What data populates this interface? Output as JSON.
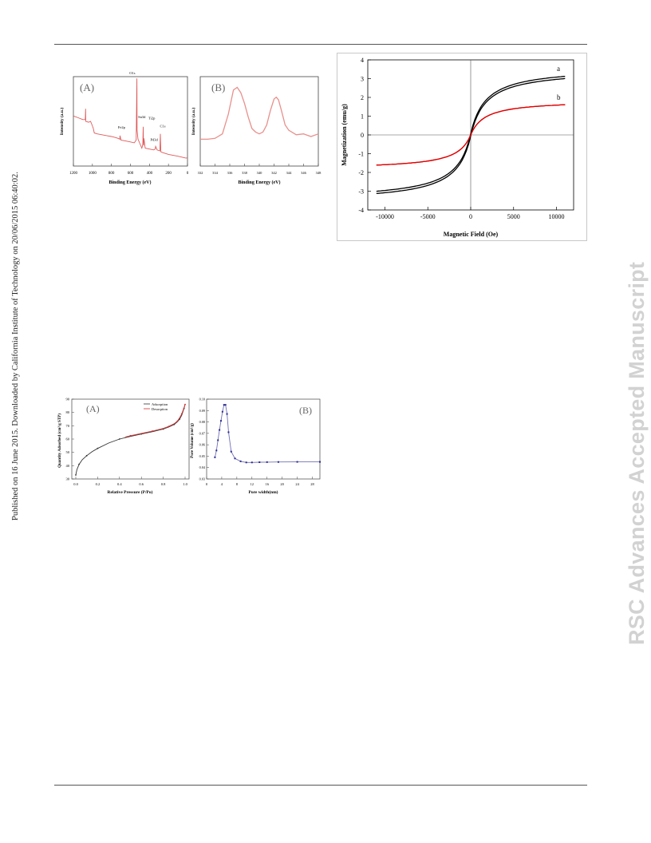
{
  "page": {
    "side_note": "Published on 16 June 2015. Downloaded by California Institute of Technology on 20/06/2015 06:40:02.",
    "watermark": "RSC Advances Accepted Manuscript"
  },
  "chart_data": [
    {
      "panel": "(A)",
      "type": "line",
      "xlabel": "Binding Energy (eV)",
      "ylabel": "Intensity (a.u.)",
      "xlim": [
        1200,
        0
      ],
      "xticks": [
        "1200",
        "1000",
        "800",
        "600",
        "400",
        "200",
        "0"
      ],
      "color": "#e05a5a",
      "series": [
        {
          "x": [
            1200,
            1150,
            1100,
            1075,
            1072,
            1070,
            1040,
            1020,
            1000,
            990,
            980,
            950,
            900,
            850,
            800,
            760,
            730,
            712,
            710,
            700,
            650,
            600,
            560,
            540,
            532,
            530,
            520,
            500,
            480,
            470,
            466,
            462,
            458,
            445,
            400,
            355,
            340,
            335,
            320,
            290,
            285,
            280,
            260,
            200,
            150,
            100,
            60,
            20,
            0
          ],
          "y": [
            0.56,
            0.54,
            0.52,
            0.52,
            0.64,
            0.5,
            0.49,
            0.5,
            0.45,
            0.42,
            0.37,
            0.36,
            0.35,
            0.34,
            0.33,
            0.32,
            0.31,
            0.3,
            0.34,
            0.29,
            0.28,
            0.27,
            0.26,
            0.29,
            0.98,
            0.4,
            0.3,
            0.25,
            0.2,
            0.24,
            0.44,
            0.23,
            0.31,
            0.2,
            0.19,
            0.18,
            0.19,
            0.22,
            0.18,
            0.17,
            0.36,
            0.16,
            0.15,
            0.13,
            0.12,
            0.11,
            0.1,
            0.09,
            0.09
          ]
        }
      ],
      "annotations": [
        "O1s",
        "Sn3d",
        "Fe2p",
        "Ti2p",
        "Pd3d",
        "C1s"
      ]
    },
    {
      "panel": "(B)",
      "type": "line",
      "xlabel": "Binding Energy (eV)",
      "ylabel": "Intensity (a.u.)",
      "xlim": [
        332,
        348
      ],
      "xticks": [
        "332",
        "334",
        "336",
        "338",
        "340",
        "342",
        "344",
        "346",
        "348"
      ],
      "color": "#e8908c",
      "series": [
        {
          "x": [
            332,
            333,
            334,
            335,
            335.8,
            336.5,
            337,
            337.5,
            338,
            338.5,
            339,
            339.5,
            340,
            340.5,
            341,
            341.5,
            342,
            342.3,
            342.6,
            343,
            343.5,
            344,
            345,
            346,
            347,
            348
          ],
          "y": [
            0.3,
            0.3,
            0.31,
            0.36,
            0.58,
            0.85,
            0.88,
            0.82,
            0.7,
            0.55,
            0.42,
            0.38,
            0.36,
            0.38,
            0.46,
            0.62,
            0.75,
            0.77,
            0.74,
            0.62,
            0.46,
            0.4,
            0.35,
            0.36,
            0.33,
            0.36
          ]
        }
      ]
    },
    {
      "type": "line",
      "xlabel": "Magnetic Field (Oe)",
      "ylabel": "Magnetization (emu/g)",
      "xlim": [
        -12000,
        12000
      ],
      "ylim": [
        -4,
        4
      ],
      "xticks": [
        "-10000",
        "-5000",
        "0",
        "5000",
        "10000"
      ],
      "yticks": [
        "-4",
        "-3",
        "-2",
        "-1",
        "0",
        "1",
        "2",
        "3",
        "4"
      ],
      "series": [
        {
          "name": "a",
          "color": "#000000",
          "hs": 3.55,
          "ho": 1750,
          "x": [
            -11000,
            11000
          ],
          "y": [
            -3.2,
            3.2
          ]
        },
        {
          "name": "b",
          "color": "#e00000",
          "hs": 1.85,
          "ho": 1650,
          "x": [
            -11000,
            11000
          ],
          "y": [
            -1.65,
            1.65
          ]
        }
      ]
    },
    {
      "panel": "(A)",
      "type": "line",
      "xlabel": "Relative Pressure (P/Po)",
      "ylabel": "Quantity Adsorbed (cm³/g STP)",
      "xlim": [
        0,
        1.0
      ],
      "ylim": [
        30,
        90
      ],
      "xticks": [
        "0.0",
        "0.2",
        "0.4",
        "0.6",
        "0.8",
        "1.0"
      ],
      "yticks": [
        "30",
        "40",
        "50",
        "60",
        "70",
        "80",
        "90"
      ],
      "legend": [
        "Adsorption",
        "Desorption"
      ],
      "series": [
        {
          "name": "Adsorption",
          "color": "#333333",
          "x": [
            0.0,
            0.01,
            0.03,
            0.06,
            0.1,
            0.15,
            0.2,
            0.3,
            0.4,
            0.5,
            0.6,
            0.7,
            0.8,
            0.85,
            0.9,
            0.93,
            0.95,
            0.97,
            0.99,
            1.0
          ],
          "y": [
            33,
            37,
            41,
            44.5,
            47.5,
            50.5,
            53,
            57,
            60,
            62,
            63.8,
            65.5,
            67.5,
            69,
            71,
            73,
            75,
            78,
            83,
            86
          ]
        },
        {
          "name": "Desorption",
          "color": "#d43030",
          "x": [
            1.0,
            0.99,
            0.97,
            0.95,
            0.93,
            0.9,
            0.85,
            0.8,
            0.7,
            0.6,
            0.5,
            0.45
          ],
          "y": [
            86,
            83.5,
            79,
            76,
            73.5,
            71.5,
            69.5,
            68,
            66,
            64.2,
            62.5,
            61.5
          ]
        }
      ]
    },
    {
      "panel": "(B)",
      "type": "line",
      "xlabel": "Pore width(nm)",
      "ylabel": "Pore Volume (cm³/g)",
      "xlim": [
        0,
        30
      ],
      "ylim": [
        0.03,
        0.1
      ],
      "xticks": [
        "0",
        "4",
        "8",
        "12",
        "16",
        "20",
        "24",
        "28"
      ],
      "yticks": [
        "0.03",
        "0.04",
        "0.05",
        "0.06",
        "0.07",
        "0.08",
        "0.09",
        "0.10"
      ],
      "series": [
        {
          "color": "#7070b8",
          "x": [
            2.2,
            2.6,
            3.0,
            3.4,
            3.8,
            4.2,
            4.6,
            5.0,
            5.4,
            5.8,
            6.5,
            7.5,
            9,
            10.5,
            12,
            14,
            16,
            19,
            24,
            30
          ],
          "y": [
            0.049,
            0.055,
            0.064,
            0.073,
            0.081,
            0.089,
            0.095,
            0.095,
            0.087,
            0.071,
            0.054,
            0.048,
            0.0455,
            0.0445,
            0.0445,
            0.0447,
            0.0448,
            0.0449,
            0.045,
            0.045
          ]
        }
      ]
    }
  ]
}
